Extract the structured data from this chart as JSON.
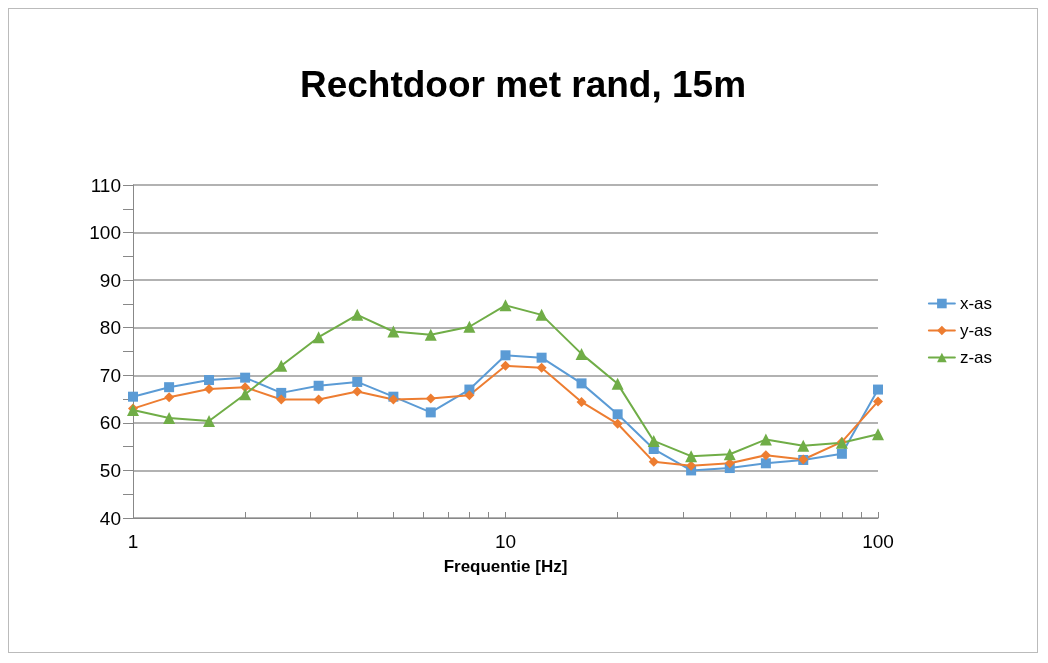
{
  "chart_data": {
    "type": "line",
    "title": "Rechtdoor met rand, 15m",
    "xlabel": "Frequentie [Hz]",
    "log": "x",
    "x": [
      1,
      1.25,
      1.6,
      2,
      2.5,
      3.15,
      4,
      5,
      6.3,
      8,
      10,
      12.5,
      16,
      20,
      25,
      31.5,
      40,
      50,
      63,
      80,
      100
    ],
    "series": [
      {
        "name": "x-as",
        "color": "#5b9bd5",
        "marker": "square",
        "values": [
          65.5,
          67.5,
          69,
          69.5,
          66.3,
          67.8,
          68.6,
          65.5,
          62.2,
          67,
          74.2,
          73.7,
          68.3,
          61.8,
          54.5,
          50,
          50.5,
          51.5,
          52.2,
          53.5,
          67
        ]
      },
      {
        "name": "y-as",
        "color": "#ed7d31",
        "marker": "diamond",
        "values": [
          63,
          65.4,
          67.1,
          67.5,
          64.9,
          64.9,
          66.6,
          64.9,
          65.1,
          65.8,
          72,
          71.6,
          64.4,
          59.8,
          51.8,
          51,
          51.5,
          53.2,
          52.3,
          56,
          64.5
        ]
      },
      {
        "name": "z-as",
        "color": "#70ad47",
        "marker": "triangle",
        "values": [
          62.7,
          61,
          60.4,
          66,
          72,
          78,
          82.7,
          79.2,
          78.5,
          80.2,
          84.7,
          82.7,
          74.5,
          68.2,
          56.2,
          53,
          53.4,
          56.5,
          55.2,
          55.8,
          57.6
        ]
      }
    ],
    "xlim": [
      1,
      100
    ],
    "xticks": [
      1,
      {
        "value": 2,
        "label": null
      },
      {
        "value": 3,
        "label": null
      },
      {
        "value": 4,
        "label": null
      },
      {
        "value": 5,
        "label": null
      },
      {
        "value": 6,
        "label": null
      },
      {
        "value": 7,
        "label": null
      },
      {
        "value": 8,
        "label": null
      },
      {
        "value": 9,
        "label": null
      },
      10,
      {
        "value": 20,
        "label": null
      },
      {
        "value": 30,
        "label": null
      },
      {
        "value": 40,
        "label": null
      },
      {
        "value": 50,
        "label": null
      },
      {
        "value": 60,
        "label": null
      },
      {
        "value": 70,
        "label": null
      },
      {
        "value": 80,
        "label": null
      },
      {
        "value": 90,
        "label": null
      },
      100
    ],
    "ylim": [
      40,
      110
    ],
    "yticks": [
      40,
      50,
      60,
      70,
      80,
      90,
      100,
      110
    ],
    "grid": "y",
    "legend": "right",
    "line_style": "solid"
  }
}
